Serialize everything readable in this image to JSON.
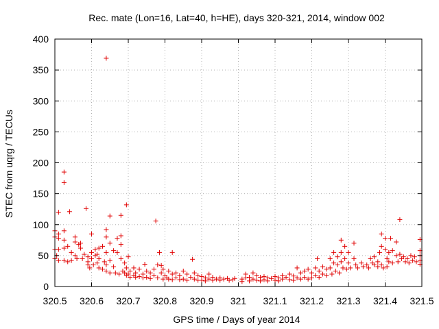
{
  "chart_data": {
    "type": "scatter",
    "title": "Rec. mate (Lon=16, Lat=40, h=HE), days 320-321, 2014, window 002",
    "xlabel": "GPS time / Days of year 2014",
    "ylabel": "STEC from uqrg / TECUs",
    "xlim": [
      320.5,
      321.5
    ],
    "ylim": [
      0,
      400
    ],
    "x_ticks": [
      "320.5",
      "320.6",
      "320.7",
      "320.8",
      "320.9",
      "321",
      "321.1",
      "321.2",
      "321.3",
      "321.4",
      "321.5"
    ],
    "y_ticks": [
      "0",
      "50",
      "100",
      "150",
      "200",
      "250",
      "300",
      "350",
      "400"
    ],
    "grid": true,
    "marker": "+",
    "marker_color": "#e00000",
    "series": [
      {
        "points": [
          [
            320.5,
            90
          ],
          [
            320.5,
            80
          ],
          [
            320.5,
            60
          ],
          [
            320.5,
            45
          ],
          [
            320.505,
            50
          ],
          [
            320.51,
            120
          ],
          [
            320.51,
            85
          ],
          [
            320.51,
            78
          ],
          [
            320.51,
            60
          ],
          [
            320.51,
            42
          ],
          [
            320.525,
            185
          ],
          [
            320.525,
            168
          ],
          [
            320.525,
            90
          ],
          [
            320.525,
            75
          ],
          [
            320.525,
            62
          ],
          [
            320.525,
            42
          ],
          [
            320.535,
            65
          ],
          [
            320.535,
            40
          ],
          [
            320.54,
            121
          ],
          [
            320.545,
            55
          ],
          [
            320.545,
            42
          ],
          [
            320.555,
            80
          ],
          [
            320.555,
            72
          ],
          [
            320.555,
            50
          ],
          [
            320.56,
            45
          ],
          [
            320.565,
            68
          ],
          [
            320.57,
            70
          ],
          [
            320.57,
            62
          ],
          [
            320.575,
            45
          ],
          [
            320.58,
            52
          ],
          [
            320.585,
            126
          ],
          [
            320.59,
            48
          ],
          [
            320.59,
            40
          ],
          [
            320.59,
            35
          ],
          [
            320.595,
            30
          ],
          [
            320.6,
            85
          ],
          [
            320.6,
            55
          ],
          [
            320.6,
            45
          ],
          [
            320.605,
            35
          ],
          [
            320.61,
            60
          ],
          [
            320.61,
            50
          ],
          [
            320.615,
            52
          ],
          [
            320.615,
            38
          ],
          [
            320.62,
            62
          ],
          [
            320.62,
            45
          ],
          [
            320.62,
            30
          ],
          [
            320.63,
            65
          ],
          [
            320.63,
            28
          ],
          [
            320.635,
            40
          ],
          [
            320.64,
            369
          ],
          [
            320.64,
            92
          ],
          [
            320.64,
            80
          ],
          [
            320.64,
            55
          ],
          [
            320.64,
            35
          ],
          [
            320.64,
            25
          ],
          [
            320.65,
            114
          ],
          [
            320.65,
            70
          ],
          [
            320.65,
            42
          ],
          [
            320.65,
            22
          ],
          [
            320.66,
            58
          ],
          [
            320.66,
            32
          ],
          [
            320.665,
            22
          ],
          [
            320.67,
            78
          ],
          [
            320.67,
            55
          ],
          [
            320.675,
            20
          ],
          [
            320.68,
            115
          ],
          [
            320.68,
            82
          ],
          [
            320.68,
            68
          ],
          [
            320.68,
            45
          ],
          [
            320.685,
            25
          ],
          [
            320.69,
            38
          ],
          [
            320.69,
            22
          ],
          [
            320.695,
            132
          ],
          [
            320.695,
            30
          ],
          [
            320.695,
            18
          ],
          [
            320.7,
            48
          ],
          [
            320.7,
            20
          ],
          [
            320.705,
            25
          ],
          [
            320.705,
            15
          ],
          [
            320.715,
            30
          ],
          [
            320.715,
            18
          ],
          [
            320.72,
            22
          ],
          [
            320.72,
            15
          ],
          [
            320.73,
            28
          ],
          [
            320.73,
            16
          ],
          [
            320.74,
            20
          ],
          [
            320.74,
            14
          ],
          [
            320.745,
            36
          ],
          [
            320.75,
            25
          ],
          [
            320.75,
            15
          ],
          [
            320.76,
            22
          ],
          [
            320.76,
            13
          ],
          [
            320.77,
            28
          ],
          [
            320.77,
            18
          ],
          [
            320.775,
            106
          ],
          [
            320.78,
            35
          ],
          [
            320.78,
            14
          ],
          [
            320.785,
            55
          ],
          [
            320.79,
            34
          ],
          [
            320.79,
            22
          ],
          [
            320.795,
            28
          ],
          [
            320.795,
            12
          ],
          [
            320.8,
            18
          ],
          [
            320.805,
            14
          ],
          [
            320.81,
            25
          ],
          [
            320.81,
            12
          ],
          [
            320.82,
            55
          ],
          [
            320.82,
            20
          ],
          [
            320.82,
            11
          ],
          [
            320.83,
            22
          ],
          [
            320.83,
            14
          ],
          [
            320.84,
            18
          ],
          [
            320.84,
            11
          ],
          [
            320.85,
            25
          ],
          [
            320.85,
            12
          ],
          [
            320.86,
            20
          ],
          [
            320.86,
            10
          ],
          [
            320.87,
            15
          ],
          [
            320.875,
            44
          ],
          [
            320.88,
            22
          ],
          [
            320.88,
            12
          ],
          [
            320.89,
            18
          ],
          [
            320.89,
            10
          ],
          [
            320.9,
            16
          ],
          [
            320.9,
            10
          ],
          [
            320.91,
            14
          ],
          [
            320.91,
            9
          ],
          [
            320.92,
            20
          ],
          [
            320.92,
            12
          ],
          [
            320.93,
            15
          ],
          [
            320.93,
            10
          ],
          [
            320.94,
            12
          ],
          [
            320.95,
            14
          ],
          [
            320.95,
            10
          ],
          [
            320.96,
            12
          ],
          [
            320.97,
            13
          ],
          [
            320.975,
            10
          ],
          [
            320.985,
            11
          ],
          [
            320.99,
            13
          ],
          [
            321.01,
            12
          ],
          [
            321.01,
            8
          ],
          [
            321.02,
            20
          ],
          [
            321.02,
            14
          ],
          [
            321.03,
            15
          ],
          [
            321.03,
            9
          ],
          [
            321.04,
            22
          ],
          [
            321.04,
            12
          ],
          [
            321.05,
            18
          ],
          [
            321.05,
            10
          ],
          [
            321.06,
            15
          ],
          [
            321.06,
            9
          ],
          [
            321.07,
            16
          ],
          [
            321.07,
            11
          ],
          [
            321.08,
            14
          ],
          [
            321.08,
            9
          ],
          [
            321.09,
            13
          ],
          [
            321.1,
            16
          ],
          [
            321.1,
            10
          ],
          [
            321.11,
            14
          ],
          [
            321.11,
            9
          ],
          [
            321.12,
            18
          ],
          [
            321.12,
            12
          ],
          [
            321.13,
            15
          ],
          [
            321.14,
            20
          ],
          [
            321.14,
            11
          ],
          [
            321.15,
            17
          ],
          [
            321.15,
            10
          ],
          [
            321.16,
            30
          ],
          [
            321.16,
            14
          ],
          [
            321.17,
            22
          ],
          [
            321.17,
            12
          ],
          [
            321.18,
            25
          ],
          [
            321.18,
            15
          ],
          [
            321.19,
            28
          ],
          [
            321.19,
            12
          ],
          [
            321.2,
            22
          ],
          [
            321.2,
            14
          ],
          [
            321.21,
            30
          ],
          [
            321.21,
            18
          ],
          [
            321.215,
            45
          ],
          [
            321.22,
            25
          ],
          [
            321.22,
            15
          ],
          [
            321.23,
            32
          ],
          [
            321.23,
            20
          ],
          [
            321.24,
            28
          ],
          [
            321.24,
            18
          ],
          [
            321.25,
            45
          ],
          [
            321.25,
            30
          ],
          [
            321.255,
            20
          ],
          [
            321.26,
            55
          ],
          [
            321.26,
            38
          ],
          [
            321.265,
            25
          ],
          [
            321.27,
            48
          ],
          [
            321.27,
            35
          ],
          [
            321.275,
            22
          ],
          [
            321.28,
            75
          ],
          [
            321.28,
            55
          ],
          [
            321.28,
            40
          ],
          [
            321.285,
            30
          ],
          [
            321.29,
            65
          ],
          [
            321.29,
            45
          ],
          [
            321.295,
            28
          ],
          [
            321.3,
            55
          ],
          [
            321.3,
            38
          ],
          [
            321.305,
            30
          ],
          [
            321.315,
            70
          ],
          [
            321.315,
            45
          ],
          [
            321.32,
            35
          ],
          [
            321.325,
            30
          ],
          [
            321.335,
            38
          ],
          [
            321.34,
            32
          ],
          [
            321.35,
            35
          ],
          [
            321.355,
            30
          ],
          [
            321.36,
            45
          ],
          [
            321.365,
            38
          ],
          [
            321.37,
            48
          ],
          [
            321.37,
            35
          ],
          [
            321.38,
            40
          ],
          [
            321.38,
            32
          ],
          [
            321.385,
            55
          ],
          [
            321.39,
            85
          ],
          [
            321.39,
            65
          ],
          [
            321.39,
            35
          ],
          [
            321.395,
            30
          ],
          [
            321.4,
            78
          ],
          [
            321.4,
            60
          ],
          [
            321.405,
            45
          ],
          [
            321.405,
            32
          ],
          [
            321.41,
            55
          ],
          [
            321.41,
            40
          ],
          [
            321.415,
            78
          ],
          [
            321.42,
            58
          ],
          [
            321.42,
            38
          ],
          [
            321.43,
            72
          ],
          [
            321.43,
            50
          ],
          [
            321.435,
            40
          ],
          [
            321.44,
            108
          ],
          [
            321.44,
            52
          ],
          [
            321.445,
            45
          ],
          [
            321.45,
            48
          ],
          [
            321.455,
            40
          ],
          [
            321.46,
            45
          ],
          [
            321.465,
            38
          ],
          [
            321.47,
            50
          ],
          [
            321.475,
            42
          ],
          [
            321.48,
            48
          ],
          [
            321.485,
            40
          ],
          [
            321.495,
            76
          ],
          [
            321.495,
            58
          ],
          [
            321.495,
            50
          ],
          [
            321.495,
            42
          ],
          [
            321.495,
            36
          ]
        ]
      }
    ]
  }
}
